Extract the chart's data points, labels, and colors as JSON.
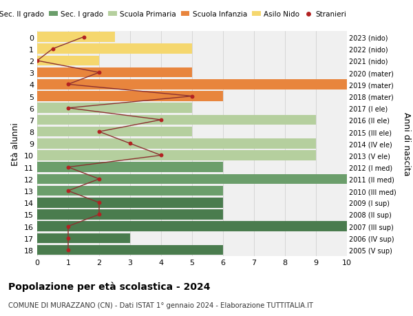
{
  "ages": [
    18,
    17,
    16,
    15,
    14,
    13,
    12,
    11,
    10,
    9,
    8,
    7,
    6,
    5,
    4,
    3,
    2,
    1,
    0
  ],
  "years": [
    "2005 (V sup)",
    "2006 (IV sup)",
    "2007 (III sup)",
    "2008 (II sup)",
    "2009 (I sup)",
    "2010 (III med)",
    "2011 (II med)",
    "2012 (I med)",
    "2013 (V ele)",
    "2014 (IV ele)",
    "2015 (III ele)",
    "2016 (II ele)",
    "2017 (I ele)",
    "2018 (mater)",
    "2019 (mater)",
    "2020 (mater)",
    "2021 (nido)",
    "2022 (nido)",
    "2023 (nido)"
  ],
  "bar_values": [
    6,
    3,
    10,
    6,
    6,
    6,
    10,
    6,
    9,
    9,
    5,
    9,
    5,
    6,
    10,
    5,
    2,
    5,
    2.5
  ],
  "bar_colors": [
    "#4a7c4e",
    "#4a7c4e",
    "#4a7c4e",
    "#4a7c4e",
    "#4a7c4e",
    "#6b9e6b",
    "#6b9e6b",
    "#6b9e6b",
    "#b5cf9e",
    "#b5cf9e",
    "#b5cf9e",
    "#b5cf9e",
    "#b5cf9e",
    "#e8853d",
    "#e8853d",
    "#e8853d",
    "#f5d76e",
    "#f5d76e",
    "#f5d76e"
  ],
  "stranieri_values": [
    1,
    1,
    1,
    2,
    2,
    1,
    2,
    1,
    4,
    3,
    2,
    4,
    1,
    5,
    1,
    2,
    0,
    0.5,
    1.5
  ],
  "stranieri_color": "#b22222",
  "line_color": "#8b3030",
  "legend_labels": [
    "Sec. II grado",
    "Sec. I grado",
    "Scuola Primaria",
    "Scuola Infanzia",
    "Asilo Nido",
    "Stranieri"
  ],
  "legend_colors": [
    "#4a7c4e",
    "#6b9e6b",
    "#b5cf9e",
    "#e8853d",
    "#f5d76e",
    "#b22222"
  ],
  "title": "Popolazione per età scolastica - 2024",
  "subtitle": "COMUNE DI MURAZZANO (CN) - Dati ISTAT 1° gennaio 2024 - Elaborazione TUTTITALIA.IT",
  "ylabel": "Età alunni",
  "ylabel2": "Anni di nascita",
  "xlabel_vals": [
    0,
    1,
    2,
    3,
    4,
    5,
    6,
    7,
    8,
    9,
    10
  ],
  "xlim": [
    0,
    10
  ],
  "background_color": "#f0f0f0",
  "bar_background": "#ffffff",
  "grid_color": "#cccccc"
}
